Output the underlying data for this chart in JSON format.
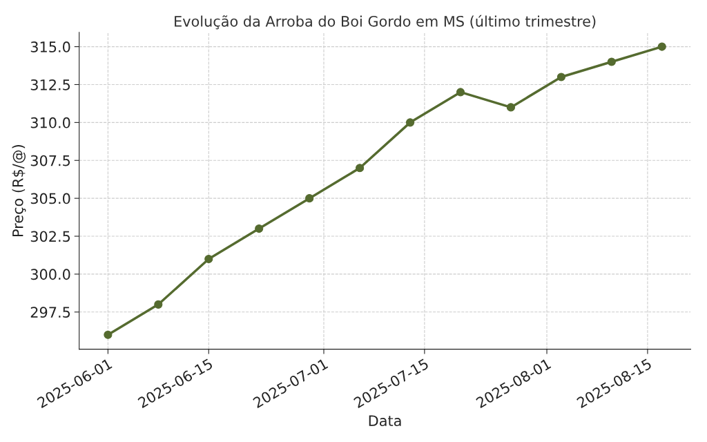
{
  "chart_data": {
    "type": "line",
    "title": "Evolução da Arroba do Boi Gordo em MS (último trimestre)",
    "xlabel": "Data",
    "ylabel": "Preço (R$/@)",
    "x": [
      "2025-06-01",
      "2025-06-08",
      "2025-06-15",
      "2025-06-22",
      "2025-06-29",
      "2025-07-06",
      "2025-07-13",
      "2025-07-20",
      "2025-07-27",
      "2025-08-03",
      "2025-08-10",
      "2025-08-17"
    ],
    "series": [
      {
        "color": "#556b2f",
        "values": [
          296,
          298,
          301,
          303,
          305,
          307,
          310,
          312,
          311,
          313,
          314,
          315
        ]
      }
    ],
    "xlim": [
      "2025-05-28",
      "2025-08-21"
    ],
    "xticks": [
      {
        "value": "2025-06-01",
        "label": "2025-06-01"
      },
      {
        "value": "2025-06-15",
        "label": "2025-06-15"
      },
      {
        "value": "2025-07-01",
        "label": "2025-07-01"
      },
      {
        "value": "2025-07-15",
        "label": "2025-07-15"
      },
      {
        "value": "2025-08-01",
        "label": "2025-08-01"
      },
      {
        "value": "2025-08-15",
        "label": "2025-08-15"
      }
    ],
    "ylim": [
      295.05,
      315.95
    ],
    "yticks": [
      297.5,
      {
        "value": 300,
        "label": "300.0"
      },
      302.5,
      {
        "value": 305,
        "label": "305.0"
      },
      307.5,
      {
        "value": 310,
        "label": "310.0"
      },
      312.5,
      {
        "value": 315,
        "label": "315.0"
      }
    ],
    "grid": true,
    "marker": "circle",
    "line_style": "solid",
    "legend": false
  }
}
